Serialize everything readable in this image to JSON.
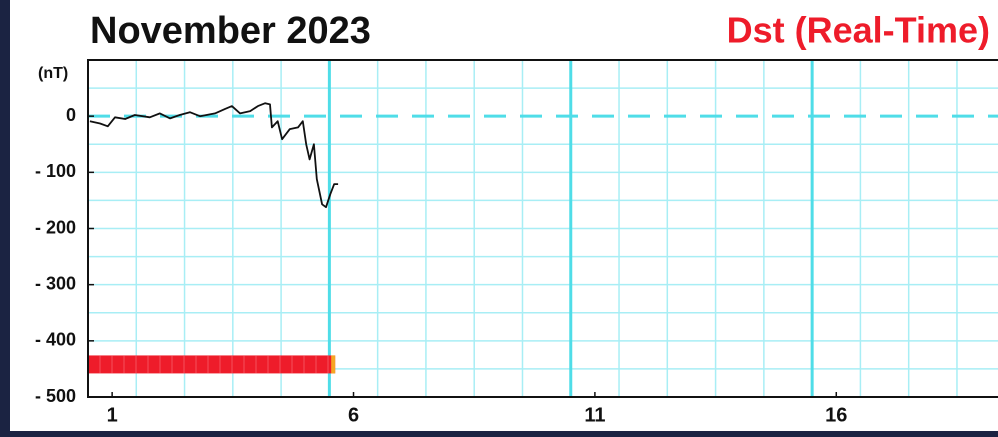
{
  "chart_data": {
    "type": "line",
    "title": "November  2023",
    "y_unit": "(nT)",
    "series": [
      {
        "name": "Dst (Real-Time)",
        "name_color": "#ee1c2a",
        "color": "#111111",
        "x": [
          1.04,
          1.25,
          1.41,
          1.56,
          1.77,
          1.97,
          2.28,
          2.49,
          2.7,
          2.9,
          3.11,
          3.32,
          3.63,
          3.84,
          3.98,
          4.15,
          4.36,
          4.52,
          4.67,
          4.77,
          4.81,
          4.93,
          5.02,
          5.18,
          5.35,
          5.45,
          5.52,
          5.59,
          5.68,
          5.74,
          5.85,
          5.93,
          6.02,
          6.1,
          6.18
        ],
        "values": [
          -9,
          -13,
          -18,
          -2,
          -5,
          2,
          -2,
          5,
          -4,
          2,
          7,
          0,
          5,
          13,
          18,
          5,
          9,
          18,
          23,
          21,
          -20,
          -9,
          -41,
          -23,
          -20,
          -9,
          -50,
          -77,
          -50,
          -112,
          -157,
          -162,
          -139,
          -121,
          -121
        ]
      }
    ],
    "xlim": [
      1,
      19.85
    ],
    "xticks": [
      {
        "value": 1.5,
        "label": "1"
      },
      {
        "value": 6.5,
        "label": "6"
      },
      {
        "value": 11.5,
        "label": "11"
      },
      {
        "value": 16.5,
        "label": "16"
      }
    ],
    "x_grid": [
      2,
      3,
      4,
      5,
      6,
      7,
      8,
      9,
      10,
      11,
      12,
      13,
      14,
      15,
      16,
      17,
      18,
      19
    ],
    "x_major_grid": [
      6,
      11,
      16
    ],
    "ylim": [
      -500,
      100
    ],
    "yticks": [
      0,
      {
        "value": -100,
        "label": "- 100"
      },
      {
        "value": -200,
        "label": "- 200"
      },
      {
        "value": -300,
        "label": "- 300"
      },
      {
        "value": -400,
        "label": "- 400"
      },
      {
        "value": -500,
        "label": "- 500"
      }
    ],
    "y_minor_grid": [
      50,
      -50,
      -150,
      -250,
      -350,
      -450
    ],
    "dashed_line": 0,
    "status_bar": {
      "x": [
        1,
        6.12
      ],
      "y": [
        -426,
        -458
      ],
      "color": "#ee1c2a",
      "end_color": "#f5a623"
    },
    "grid_color": "#a8eef5",
    "major_grid_color": "#4fdde8"
  }
}
